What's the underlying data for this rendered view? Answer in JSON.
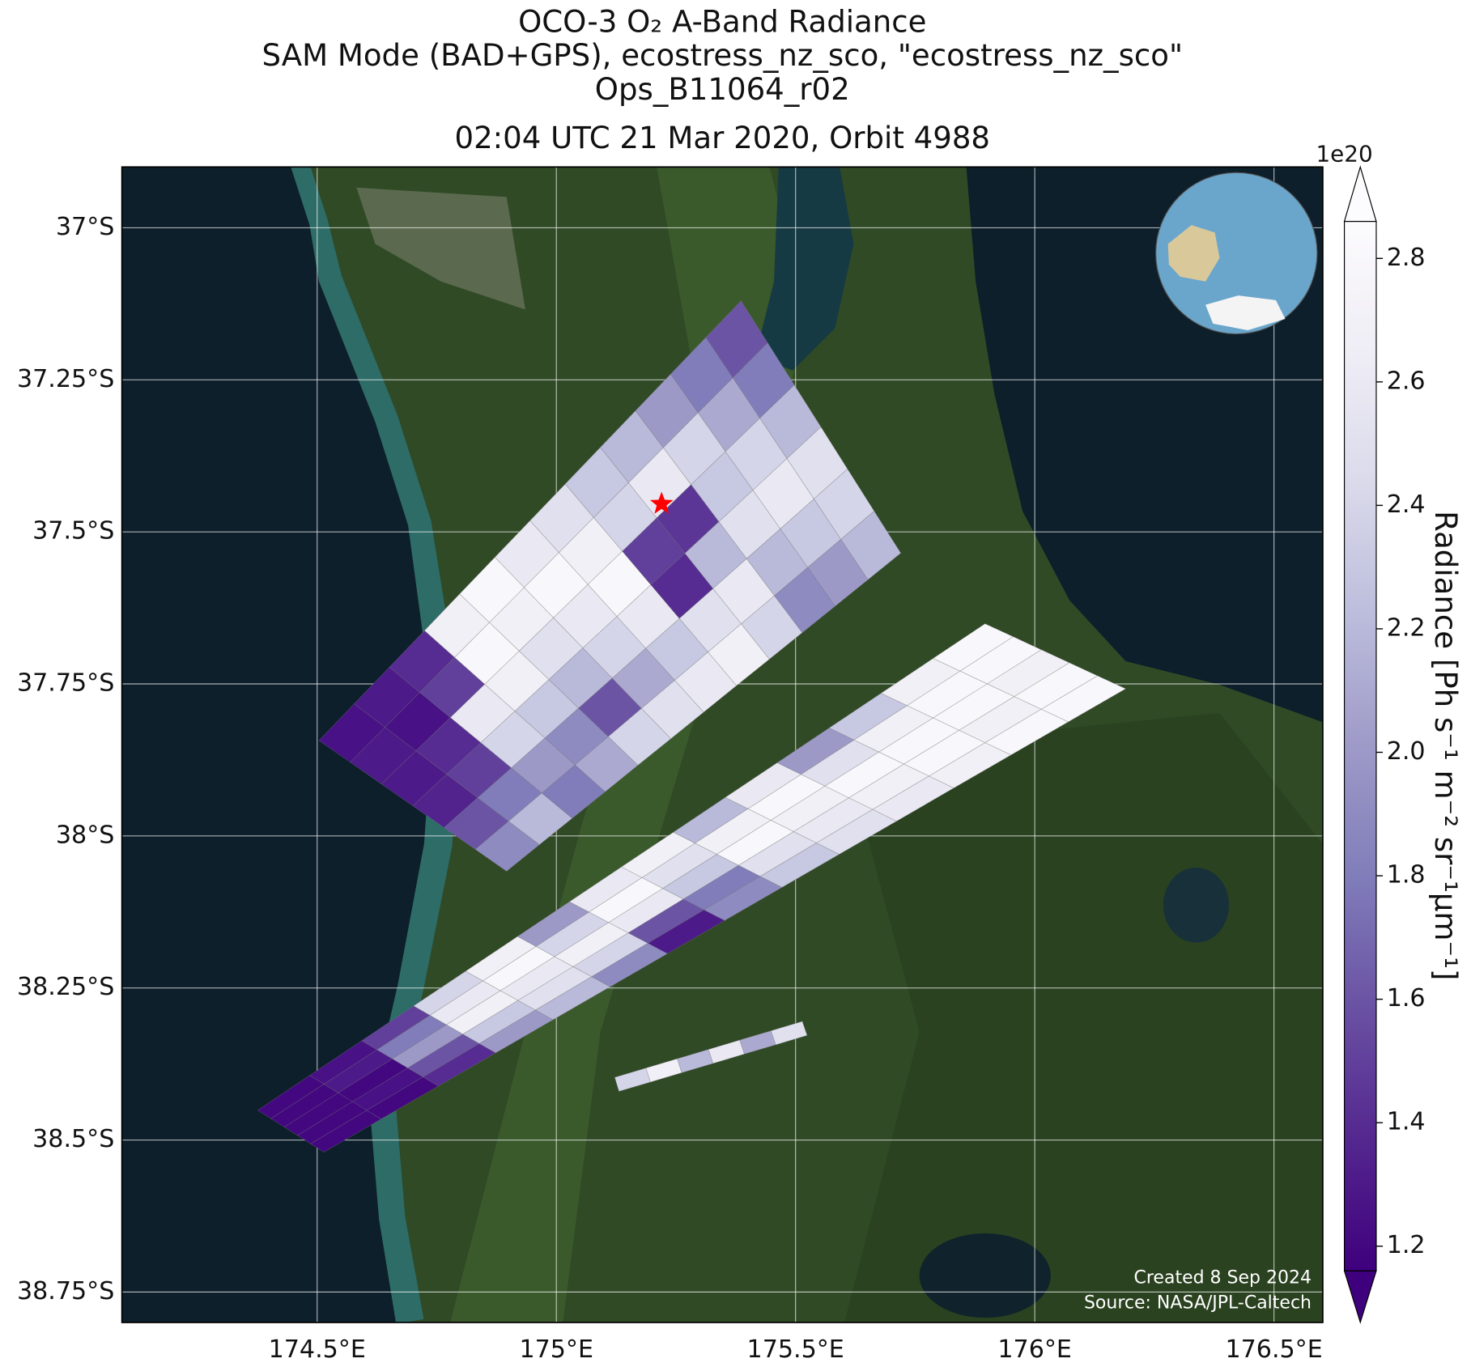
{
  "chart_data": {
    "type": "map",
    "title": [
      "OCO-3 O₂ A-Band Radiance",
      "SAM Mode (BAD+GPS), ecostress_nz_sco, \"ecostress_nz_sco\"",
      "Ops_B11064_r02",
      "02:04 UTC 21 Mar 2020, Orbit 4988"
    ],
    "xlim": [
      174.092,
      176.602
    ],
    "ylim": [
      -36.9,
      -38.8
    ],
    "xticks": [
      {
        "value": 174.5,
        "label": "174.5°E"
      },
      {
        "value": 175,
        "label": "175°E"
      },
      {
        "value": 175.5,
        "label": "175.5°E"
      },
      {
        "value": 176,
        "label": "176°E"
      },
      {
        "value": 176.5,
        "label": "176.5°E"
      }
    ],
    "yticks": [
      {
        "value": -37,
        "label": "37°S"
      },
      {
        "value": -37.25,
        "label": "37.25°S"
      },
      {
        "value": -37.5,
        "label": "37.5°S"
      },
      {
        "value": -37.75,
        "label": "37.75°S"
      },
      {
        "value": -38,
        "label": "38°S"
      },
      {
        "value": -38.25,
        "label": "38.25°S"
      },
      {
        "value": -38.5,
        "label": "38.5°S"
      },
      {
        "value": -38.75,
        "label": "38.75°S"
      }
    ],
    "grid": true,
    "swaths": [
      {
        "corners": [
          [
            174.504,
            -37.843
          ],
          [
            175.386,
            -37.12
          ],
          [
            175.72,
            -37.535
          ],
          [
            174.896,
            -38.058
          ]
        ],
        "values": [
          [
            1.25,
            1.3,
            1.3,
            1.35,
            1.6,
            1.9
          ],
          [
            1.3,
            1.25,
            1.4,
            1.5,
            1.8,
            2.2
          ],
          [
            1.4,
            1.5,
            2.6,
            2.4,
            2.0,
            1.8
          ],
          [
            2.7,
            2.8,
            2.7,
            2.3,
            1.9,
            2.1
          ],
          [
            2.8,
            2.7,
            2.5,
            2.2,
            1.6,
            2.4
          ],
          [
            2.6,
            2.8,
            2.6,
            2.4,
            2.1,
            2.5
          ],
          [
            2.5,
            2.7,
            2.8,
            2.6,
            2.3,
            2.6
          ],
          [
            2.3,
            2.4,
            1.5,
            1.4,
            2.5,
            2.7
          ],
          [
            2.2,
            2.6,
            1.45,
            2.2,
            2.6,
            2.4
          ],
          [
            2.0,
            2.4,
            2.3,
            2.5,
            2.2,
            1.9
          ],
          [
            1.8,
            2.1,
            2.4,
            2.6,
            2.3,
            2.0
          ],
          [
            1.6,
            1.8,
            2.2,
            2.5,
            2.4,
            2.2
          ]
        ]
      },
      {
        "corners": [
          [
            174.376,
            -38.451
          ],
          [
            175.896,
            -37.651
          ],
          [
            176.19,
            -37.758
          ],
          [
            174.514,
            -38.52
          ]
        ],
        "values": [
          [
            1.2,
            1.2,
            1.2,
            1.2,
            1.2
          ],
          [
            1.25,
            1.3,
            1.2,
            1.25,
            1.2
          ],
          [
            1.5,
            1.8,
            2.0,
            1.6,
            1.4
          ],
          [
            2.4,
            2.6,
            2.7,
            2.3,
            2.0
          ],
          [
            2.7,
            2.8,
            2.6,
            2.5,
            2.2
          ],
          [
            2.0,
            2.4,
            2.7,
            2.4,
            1.9
          ],
          [
            2.6,
            2.8,
            2.6,
            1.6,
            1.3
          ],
          [
            2.7,
            2.5,
            2.3,
            1.8,
            1.9
          ],
          [
            2.2,
            2.7,
            2.8,
            2.5,
            2.3
          ],
          [
            2.6,
            2.8,
            2.7,
            2.6,
            2.5
          ],
          [
            2.0,
            2.5,
            2.8,
            2.7,
            2.6
          ],
          [
            2.3,
            2.7,
            2.8,
            2.8,
            2.7
          ],
          [
            2.7,
            2.8,
            2.8,
            2.7,
            2.8
          ],
          [
            2.8,
            2.8,
            2.7,
            2.8,
            2.8
          ]
        ]
      },
      {
        "corners": [
          [
            175.122,
            -38.397
          ],
          [
            175.514,
            -38.305
          ],
          [
            175.524,
            -38.328
          ],
          [
            175.131,
            -38.42
          ]
        ],
        "values": [
          [
            2.4
          ],
          [
            2.7
          ],
          [
            2.2
          ],
          [
            2.6
          ],
          [
            2.1
          ],
          [
            2.5
          ]
        ]
      }
    ],
    "site": {
      "lon": 175.22,
      "lat": -37.454,
      "color": "#ff0000"
    },
    "colorbar": {
      "label": "Radiance [Ph s⁻¹ m⁻² sr⁻¹μm⁻¹]",
      "clim": [
        1.16,
        2.86
      ],
      "ticks": [
        1.2,
        1.4,
        1.6,
        1.8,
        {
          "value": 2,
          "label": "2.0"
        },
        2.2,
        2.4,
        2.6,
        2.8
      ],
      "offset_label": "1e20",
      "colormap": [
        "#3f007d",
        "#54278f",
        "#6a51a3",
        "#807dba",
        "#9e9ac8",
        "#bcbddc",
        "#dadaeb",
        "#efedf5",
        "#fcfbfd"
      ]
    },
    "annotations": [
      "Created 8 Sep 2024",
      "Source: NASA/JPL-Caltech"
    ]
  }
}
